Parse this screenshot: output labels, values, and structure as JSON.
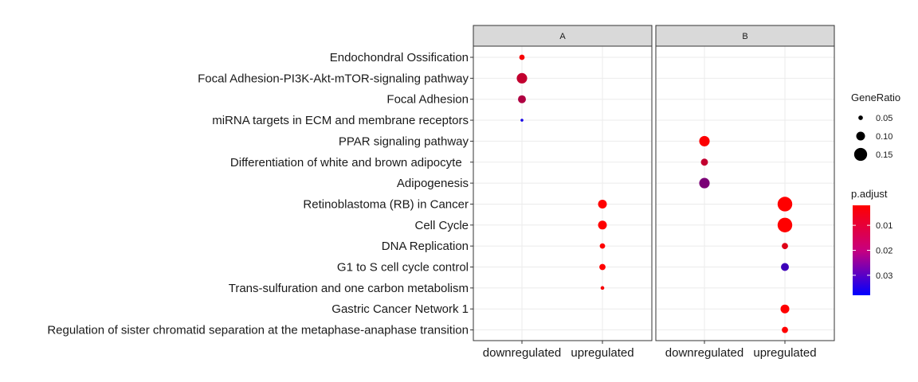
{
  "chart_data": {
    "type": "scatter",
    "panels": [
      "A",
      "B"
    ],
    "x_categories": [
      "downregulated",
      "upregulated"
    ],
    "y_categories": [
      "Endochondral Ossification",
      "Focal Adhesion-PI3K-Akt-mTOR-signaling pathway",
      "Focal Adhesion",
      "miRNA targets in ECM and membrane receptors",
      "PPAR signaling pathway",
      "Differentiation of white and brown adipocyte  ",
      "Adipogenesis",
      "Retinoblastoma (RB) in Cancer",
      "Cell Cycle",
      "DNA Replication",
      "G1 to S cell cycle control",
      "Trans-sulfuration and one carbon metabolism",
      "Gastric Cancer Network 1",
      "Regulation of sister chromatid separation at the metaphase-anaphase transition"
    ],
    "points": [
      {
        "panel": "A",
        "x": "downregulated",
        "y": "Endochondral Ossification",
        "gene_ratio": 0.06,
        "p_adjust": 0.004
      },
      {
        "panel": "A",
        "x": "downregulated",
        "y": "Focal Adhesion-PI3K-Akt-mTOR-signaling pathway",
        "gene_ratio": 0.12,
        "p_adjust": 0.015
      },
      {
        "panel": "A",
        "x": "downregulated",
        "y": "Focal Adhesion",
        "gene_ratio": 0.09,
        "p_adjust": 0.018
      },
      {
        "panel": "A",
        "x": "downregulated",
        "y": "miRNA targets in ECM and membrane receptors",
        "gene_ratio": 0.03,
        "p_adjust": 0.036
      },
      {
        "panel": "A",
        "x": "upregulated",
        "y": "Retinoblastoma (RB) in Cancer",
        "gene_ratio": 0.1,
        "p_adjust": 0.002
      },
      {
        "panel": "A",
        "x": "upregulated",
        "y": "Cell Cycle",
        "gene_ratio": 0.1,
        "p_adjust": 0.002
      },
      {
        "panel": "A",
        "x": "upregulated",
        "y": "DNA Replication",
        "gene_ratio": 0.06,
        "p_adjust": 0.002
      },
      {
        "panel": "A",
        "x": "upregulated",
        "y": "G1 to S cell cycle control",
        "gene_ratio": 0.07,
        "p_adjust": 0.002
      },
      {
        "panel": "A",
        "x": "upregulated",
        "y": "Trans-sulfuration and one carbon metabolism",
        "gene_ratio": 0.04,
        "p_adjust": 0.004
      },
      {
        "panel": "B",
        "x": "downregulated",
        "y": "PPAR signaling pathway",
        "gene_ratio": 0.12,
        "p_adjust": 0.003
      },
      {
        "panel": "B",
        "x": "downregulated",
        "y": "Differentiation of white and brown adipocyte  ",
        "gene_ratio": 0.08,
        "p_adjust": 0.015
      },
      {
        "panel": "B",
        "x": "downregulated",
        "y": "Adipogenesis",
        "gene_ratio": 0.12,
        "p_adjust": 0.025
      },
      {
        "panel": "B",
        "x": "upregulated",
        "y": "Retinoblastoma (RB) in Cancer",
        "gene_ratio": 0.17,
        "p_adjust": 0.002
      },
      {
        "panel": "B",
        "x": "upregulated",
        "y": "Cell Cycle",
        "gene_ratio": 0.17,
        "p_adjust": 0.002
      },
      {
        "panel": "B",
        "x": "upregulated",
        "y": "DNA Replication",
        "gene_ratio": 0.07,
        "p_adjust": 0.01
      },
      {
        "panel": "B",
        "x": "upregulated",
        "y": "G1 to S cell cycle control",
        "gene_ratio": 0.09,
        "p_adjust": 0.032
      },
      {
        "panel": "B",
        "x": "upregulated",
        "y": "Gastric Cancer Network 1",
        "gene_ratio": 0.1,
        "p_adjust": 0.002
      },
      {
        "panel": "B",
        "x": "upregulated",
        "y": "Regulation of sister chromatid separation at the metaphase-anaphase transition",
        "gene_ratio": 0.07,
        "p_adjust": 0.002
      }
    ],
    "size_legend": {
      "title": "GeneRatio",
      "values": [
        0.05,
        0.1,
        0.15
      ],
      "labels": [
        "0.05",
        "0.10",
        "0.15"
      ]
    },
    "color_legend": {
      "title": "p.adjust",
      "low_color": "#FF0000",
      "high_color": "#0000FF",
      "range": [
        0.002,
        0.038
      ],
      "ticks": [
        0.01,
        0.02,
        0.03
      ],
      "labels": [
        "0.01",
        "0.02",
        "0.03"
      ]
    },
    "grid": true,
    "legend_position": "right",
    "xlabel": "",
    "ylabel": ""
  }
}
